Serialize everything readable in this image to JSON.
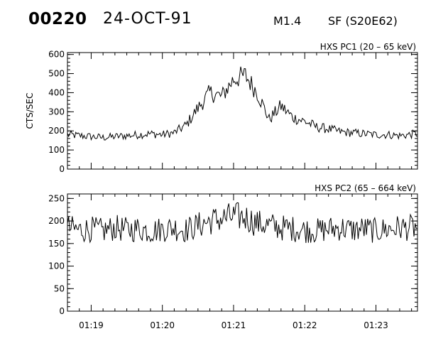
{
  "header": {
    "event_id": "00220",
    "date": "24-OCT-91",
    "goes_class": "M1.4",
    "location": "SF (S20E62)"
  },
  "chart_data": [
    {
      "type": "line",
      "title": "HXS PC1 (20 – 65 keV)",
      "ylabel": "CTS/SEC",
      "xlabel": "",
      "ylim": [
        0,
        610
      ],
      "yticks": [
        0,
        100,
        200,
        300,
        400,
        500,
        600
      ],
      "xlim": [
        "01:18:40",
        "01:23:35"
      ],
      "xticks": [
        "01:19",
        "01:20",
        "01:21",
        "01:22",
        "01:23"
      ],
      "grid": false,
      "series": [
        {
          "x": [
            "01:18:40",
            "01:18:50",
            "01:19:00",
            "01:19:10",
            "01:19:20",
            "01:19:30",
            "01:19:40",
            "01:19:50",
            "01:20:00",
            "01:20:10",
            "01:20:20",
            "01:20:30",
            "01:20:40",
            "01:20:50",
            "01:21:00",
            "01:21:10",
            "01:21:20",
            "01:21:30",
            "01:21:40",
            "01:21:50",
            "01:22:00",
            "01:22:10",
            "01:22:20",
            "01:22:30",
            "01:22:40",
            "01:22:50",
            "01:23:00",
            "01:23:10",
            "01:23:20",
            "01:23:35"
          ],
          "values": [
            180,
            175,
            170,
            165,
            170,
            175,
            180,
            185,
            180,
            190,
            230,
            320,
            400,
            380,
            470,
            490,
            400,
            260,
            330,
            270,
            250,
            220,
            210,
            195,
            190,
            185,
            180,
            180,
            175,
            185
          ]
        }
      ]
    },
    {
      "type": "line",
      "title": "HXS PC2 (65 – 664 keV)",
      "ylabel": "",
      "xlabel": "",
      "ylim": [
        0,
        260
      ],
      "yticks": [
        0,
        50,
        100,
        150,
        200,
        250
      ],
      "xlim": [
        "01:18:40",
        "01:23:35"
      ],
      "xticks": [
        "01:19",
        "01:20",
        "01:21",
        "01:22",
        "01:23"
      ],
      "grid": false,
      "series": [
        {
          "x": [
            "01:18:40",
            "01:18:50",
            "01:19:00",
            "01:19:10",
            "01:19:20",
            "01:19:30",
            "01:19:40",
            "01:19:50",
            "01:20:00",
            "01:20:10",
            "01:20:20",
            "01:20:30",
            "01:20:40",
            "01:20:50",
            "01:21:00",
            "01:21:10",
            "01:21:20",
            "01:21:30",
            "01:21:40",
            "01:21:50",
            "01:22:00",
            "01:22:10",
            "01:22:20",
            "01:22:30",
            "01:22:40",
            "01:22:50",
            "01:23:00",
            "01:23:10",
            "01:23:20",
            "01:23:35"
          ],
          "values": [
            185,
            180,
            182,
            178,
            185,
            180,
            183,
            178,
            182,
            185,
            180,
            190,
            200,
            205,
            210,
            208,
            195,
            190,
            185,
            183,
            180,
            178,
            182,
            185,
            180,
            183,
            178,
            182,
            185,
            185
          ]
        }
      ]
    }
  ]
}
